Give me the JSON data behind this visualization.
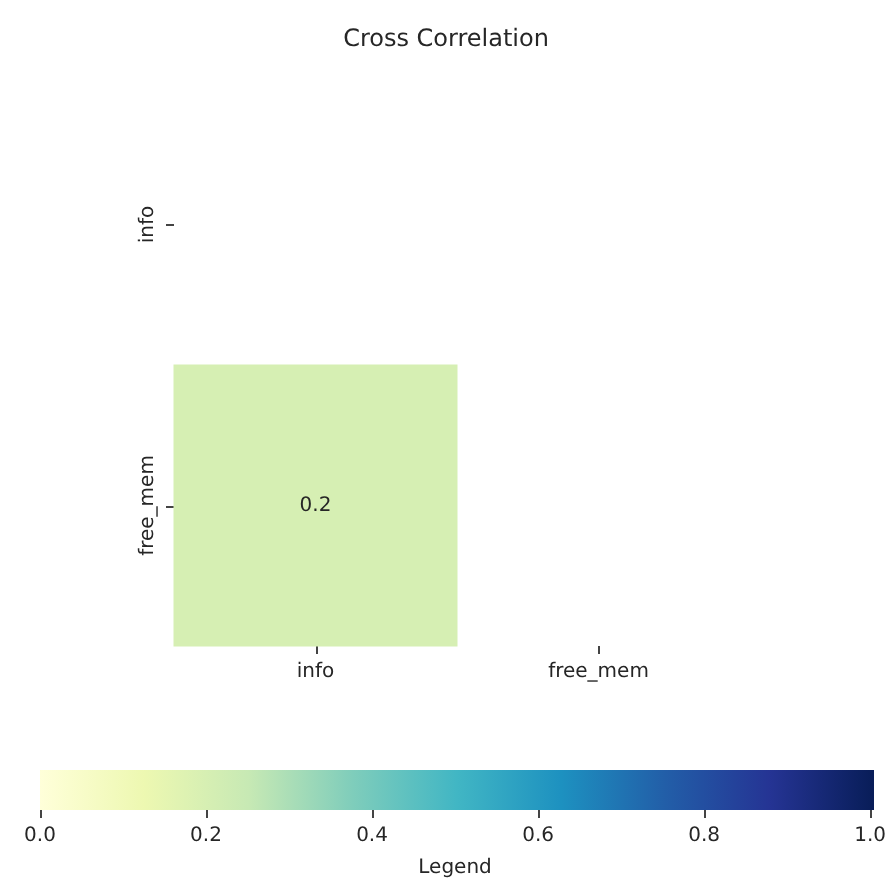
{
  "chart_data": {
    "type": "heatmap",
    "title": "Cross Correlation",
    "categories": [
      "info",
      "free_mem"
    ],
    "y_categories": [
      "info",
      "free_mem"
    ],
    "cells": [
      [
        null,
        null
      ],
      [
        0.2,
        null
      ]
    ],
    "clim": [
      0,
      1
    ],
    "cticks": [
      {
        "value": 0,
        "label": "0.0"
      },
      0.2,
      0.4,
      0.6,
      0.8,
      {
        "value": 1,
        "label": "1.0"
      }
    ],
    "clabel": "Legend",
    "data_labels": true
  }
}
